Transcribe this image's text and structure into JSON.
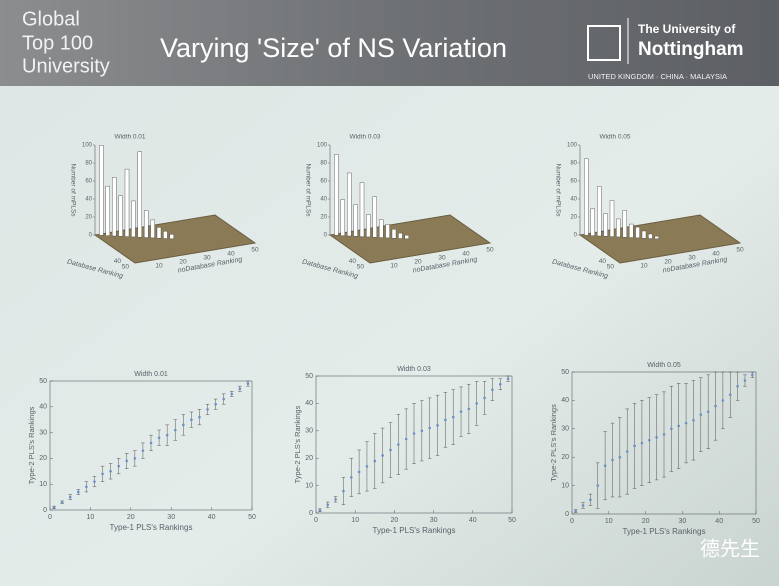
{
  "header": {
    "badge": [
      "Global",
      "Top 100",
      "University"
    ],
    "title": "Varying 'Size' of NS Variation",
    "university": [
      "The University of",
      "Nottingham"
    ],
    "campuses": "UNITED KINGDOM · CHINA · MALAYSIA"
  },
  "watermark": "德先生",
  "chart_data": [
    {
      "type": "bar3d",
      "title": "Width 0.01",
      "xlabel": "Database Ranking",
      "ylabel": "noDatabase Ranking",
      "zlabel": "Number of mPLSs",
      "x": [
        2,
        4,
        6,
        8,
        10,
        12,
        14,
        16,
        18,
        20,
        22,
        24
      ],
      "values": [
        100,
        55,
        65,
        45,
        75,
        40,
        95,
        30,
        20,
        12,
        8,
        5
      ],
      "color": "#ffffff",
      "xlim": [
        0,
        50
      ],
      "xticks": [
        40,
        50
      ],
      "ylim": [
        0,
        50
      ],
      "yticks": [
        10,
        20,
        30,
        40,
        50
      ],
      "zlim": [
        0,
        100
      ],
      "zticks": [
        0,
        20,
        40,
        60,
        80,
        100
      ]
    },
    {
      "type": "bar3d",
      "title": "Width 0.03",
      "xlabel": "Database Ranking",
      "ylabel": "noDatabase Ranking",
      "zlabel": "Number of mPLSs",
      "x": [
        2,
        4,
        6,
        8,
        10,
        12,
        14,
        16,
        18,
        20,
        22,
        24
      ],
      "values": [
        90,
        40,
        70,
        35,
        60,
        25,
        45,
        20,
        15,
        10,
        6,
        4
      ],
      "color": "#ffffff",
      "xlim": [
        0,
        50
      ],
      "xticks": [
        40,
        50
      ],
      "ylim": [
        0,
        50
      ],
      "yticks": [
        10,
        20,
        30,
        40,
        50
      ],
      "zlim": [
        0,
        100
      ],
      "zticks": [
        0,
        20,
        40,
        60,
        80,
        100
      ]
    },
    {
      "type": "bar3d",
      "title": "Width 0.05",
      "xlabel": "Database Ranking",
      "ylabel": "noDatabase Ranking",
      "zlabel": "Number of mPLSs",
      "x": [
        2,
        4,
        6,
        8,
        10,
        12,
        14,
        16,
        18,
        20,
        22,
        24
      ],
      "values": [
        85,
        30,
        55,
        25,
        40,
        20,
        30,
        15,
        12,
        8,
        5,
        3
      ],
      "color": "#ffffff",
      "xlim": [
        0,
        50
      ],
      "xticks": [
        40,
        50
      ],
      "ylim": [
        0,
        50
      ],
      "yticks": [
        10,
        20,
        30,
        40,
        50
      ],
      "zlim": [
        0,
        100
      ],
      "zticks": [
        0,
        20,
        40,
        60,
        80,
        100
      ]
    },
    {
      "type": "errorbar",
      "title": "Width 0.01",
      "xlabel": "Type-1 PLS's Rankings",
      "ylabel": "Type-2 PLS's Rankings",
      "color": "#6f8fc4",
      "x": [
        1,
        3,
        5,
        7,
        9,
        11,
        13,
        15,
        17,
        19,
        21,
        23,
        25,
        27,
        29,
        31,
        33,
        35,
        37,
        39,
        41,
        43,
        45,
        47,
        49
      ],
      "values": [
        1,
        3,
        5,
        7,
        9,
        11,
        14,
        15,
        17,
        19,
        20,
        23,
        26,
        28,
        29,
        31,
        33,
        35,
        36,
        39,
        41,
        43,
        45,
        47,
        49
      ],
      "errors": [
        0.5,
        0.5,
        1,
        1,
        2,
        2,
        3,
        3,
        3,
        3,
        3,
        3,
        3,
        3,
        4,
        4,
        4,
        3,
        3,
        2,
        2,
        2,
        1,
        1,
        1
      ],
      "xlim": [
        0,
        50
      ],
      "xticks": [
        0,
        10,
        20,
        30,
        40,
        50
      ],
      "ylim": [
        0,
        50
      ],
      "yticks": [
        0,
        10,
        20,
        30,
        40,
        50
      ]
    },
    {
      "type": "errorbar",
      "title": "Width 0.03",
      "xlabel": "Type-1 PLS's Rankings",
      "ylabel": "Type-2 PLS's Rankings",
      "color": "#6f8fc4",
      "x": [
        1,
        3,
        5,
        7,
        9,
        11,
        13,
        15,
        17,
        19,
        21,
        23,
        25,
        27,
        29,
        31,
        33,
        35,
        37,
        39,
        41,
        43,
        45,
        47,
        49
      ],
      "values": [
        1,
        3,
        5,
        8,
        13,
        15,
        17,
        19,
        21,
        23,
        25,
        27,
        29,
        30,
        31,
        32,
        34,
        35,
        37,
        38,
        40,
        42,
        45,
        47,
        49
      ],
      "errors": [
        0.5,
        1,
        1,
        5,
        7,
        8,
        9,
        10,
        10,
        10,
        11,
        11,
        11,
        11,
        11,
        11,
        10,
        10,
        9,
        9,
        8,
        6,
        4,
        2,
        1
      ],
      "xlim": [
        0,
        50
      ],
      "xticks": [
        0,
        10,
        20,
        30,
        40,
        50
      ],
      "ylim": [
        0,
        50
      ],
      "yticks": [
        0,
        10,
        20,
        30,
        40,
        50
      ]
    },
    {
      "type": "errorbar",
      "title": "Width 0.05",
      "xlabel": "Type-1 PLS's Rankings",
      "ylabel": "Type-2 PLS's Rankings",
      "color": "#6f8fc4",
      "x": [
        1,
        3,
        5,
        7,
        9,
        11,
        13,
        15,
        17,
        19,
        21,
        23,
        25,
        27,
        29,
        31,
        33,
        35,
        37,
        39,
        41,
        43,
        45,
        47,
        49
      ],
      "values": [
        1,
        3,
        5,
        10,
        17,
        19,
        20,
        22,
        24,
        25,
        26,
        27,
        28,
        30,
        31,
        32,
        33,
        35,
        36,
        38,
        40,
        42,
        45,
        47,
        49
      ],
      "errors": [
        0.5,
        1,
        2,
        8,
        12,
        13,
        14,
        15,
        15,
        15,
        15,
        15,
        15,
        15,
        15,
        14,
        14,
        13,
        13,
        12,
        10,
        8,
        5,
        2,
        1
      ],
      "xlim": [
        0,
        50
      ],
      "xticks": [
        0,
        10,
        20,
        30,
        40,
        50
      ],
      "ylim": [
        0,
        50
      ],
      "yticks": [
        0,
        10,
        20,
        30,
        40,
        50
      ]
    }
  ]
}
